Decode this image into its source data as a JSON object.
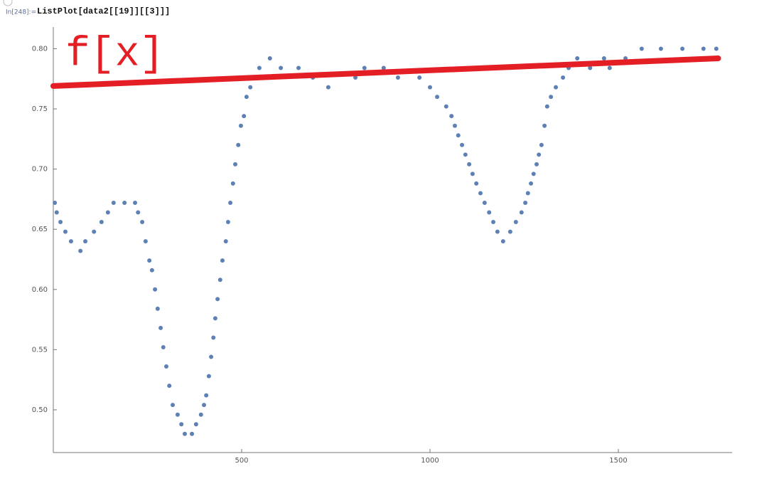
{
  "input_label": "In[248]:=",
  "input_code": "ListPlot[data2[[19]][[3]]]",
  "chart_data": {
    "type": "scatter",
    "annotation": "f[x]",
    "annotation_color": "#e31e24",
    "xlim": [
      0,
      1800
    ],
    "ylim": [
      0.4645,
      0.818
    ],
    "xticks": [
      500,
      1000,
      1500
    ],
    "yticks": [
      {
        "value": 0.5,
        "label": "0.50"
      },
      0.55,
      {
        "value": 0.6,
        "label": "0.60"
      },
      0.65,
      {
        "value": 0.7,
        "label": "0.70"
      },
      0.75,
      {
        "value": 0.8,
        "label": "0.80"
      }
    ],
    "series": [
      {
        "marker": "point",
        "color": "#5e81b5",
        "x": [
          4,
          9,
          19,
          32,
          47,
          72,
          85,
          108,
          128,
          145,
          160,
          189,
          217,
          225,
          236,
          245,
          255,
          262,
          270,
          277,
          285,
          292,
          300,
          308,
          317,
          330,
          340,
          349,
          368,
          379,
          392,
          400,
          406,
          413,
          419,
          425,
          430,
          436,
          443,
          449,
          458,
          464,
          470,
          477,
          483,
          491,
          498,
          506,
          513,
          523,
          534,
          547,
          575,
          604,
          651,
          689,
          730,
          802,
          826,
          877,
          915,
          972,
          1000,
          1019,
          1043,
          1057,
          1066,
          1075,
          1085,
          1094,
          1104,
          1113,
          1123,
          1134,
          1145,
          1157,
          1168,
          1179,
          1194,
          1213,
          1228,
          1243,
          1253,
          1260,
          1268,
          1275,
          1283,
          1289,
          1296,
          1304,
          1311,
          1321,
          1334,
          1353,
          1368,
          1391,
          1425,
          1462,
          1477,
          1519,
          1562,
          1613,
          1670,
          1726,
          1760
        ],
        "values": [
          0.672,
          0.664,
          0.656,
          0.648,
          0.64,
          0.632,
          0.64,
          0.648,
          0.656,
          0.664,
          0.672,
          0.672,
          0.672,
          0.664,
          0.656,
          0.64,
          0.624,
          0.616,
          0.6,
          0.584,
          0.568,
          0.552,
          0.536,
          0.52,
          0.504,
          0.496,
          0.488,
          0.48,
          0.48,
          0.488,
          0.496,
          0.504,
          0.512,
          0.528,
          0.544,
          0.56,
          0.576,
          0.592,
          0.608,
          0.624,
          0.64,
          0.656,
          0.672,
          0.688,
          0.704,
          0.72,
          0.736,
          0.744,
          0.76,
          0.768,
          0.776,
          0.784,
          0.792,
          0.784,
          0.784,
          0.776,
          0.768,
          0.776,
          0.784,
          0.784,
          0.776,
          0.776,
          0.768,
          0.76,
          0.752,
          0.744,
          0.736,
          0.728,
          0.72,
          0.712,
          0.704,
          0.696,
          0.688,
          0.68,
          0.672,
          0.664,
          0.656,
          0.648,
          0.64,
          0.648,
          0.656,
          0.664,
          0.672,
          0.68,
          0.688,
          0.696,
          0.704,
          0.712,
          0.72,
          0.736,
          0.752,
          0.76,
          0.768,
          0.776,
          0.784,
          0.792,
          0.784,
          0.792,
          0.784,
          0.792,
          0.8,
          0.8,
          0.8,
          0.8,
          0.8
        ]
      },
      {
        "marker": "line",
        "color": "#e31e24",
        "x": [
          0,
          1765
        ],
        "values": [
          0.769,
          0.792
        ]
      }
    ]
  }
}
